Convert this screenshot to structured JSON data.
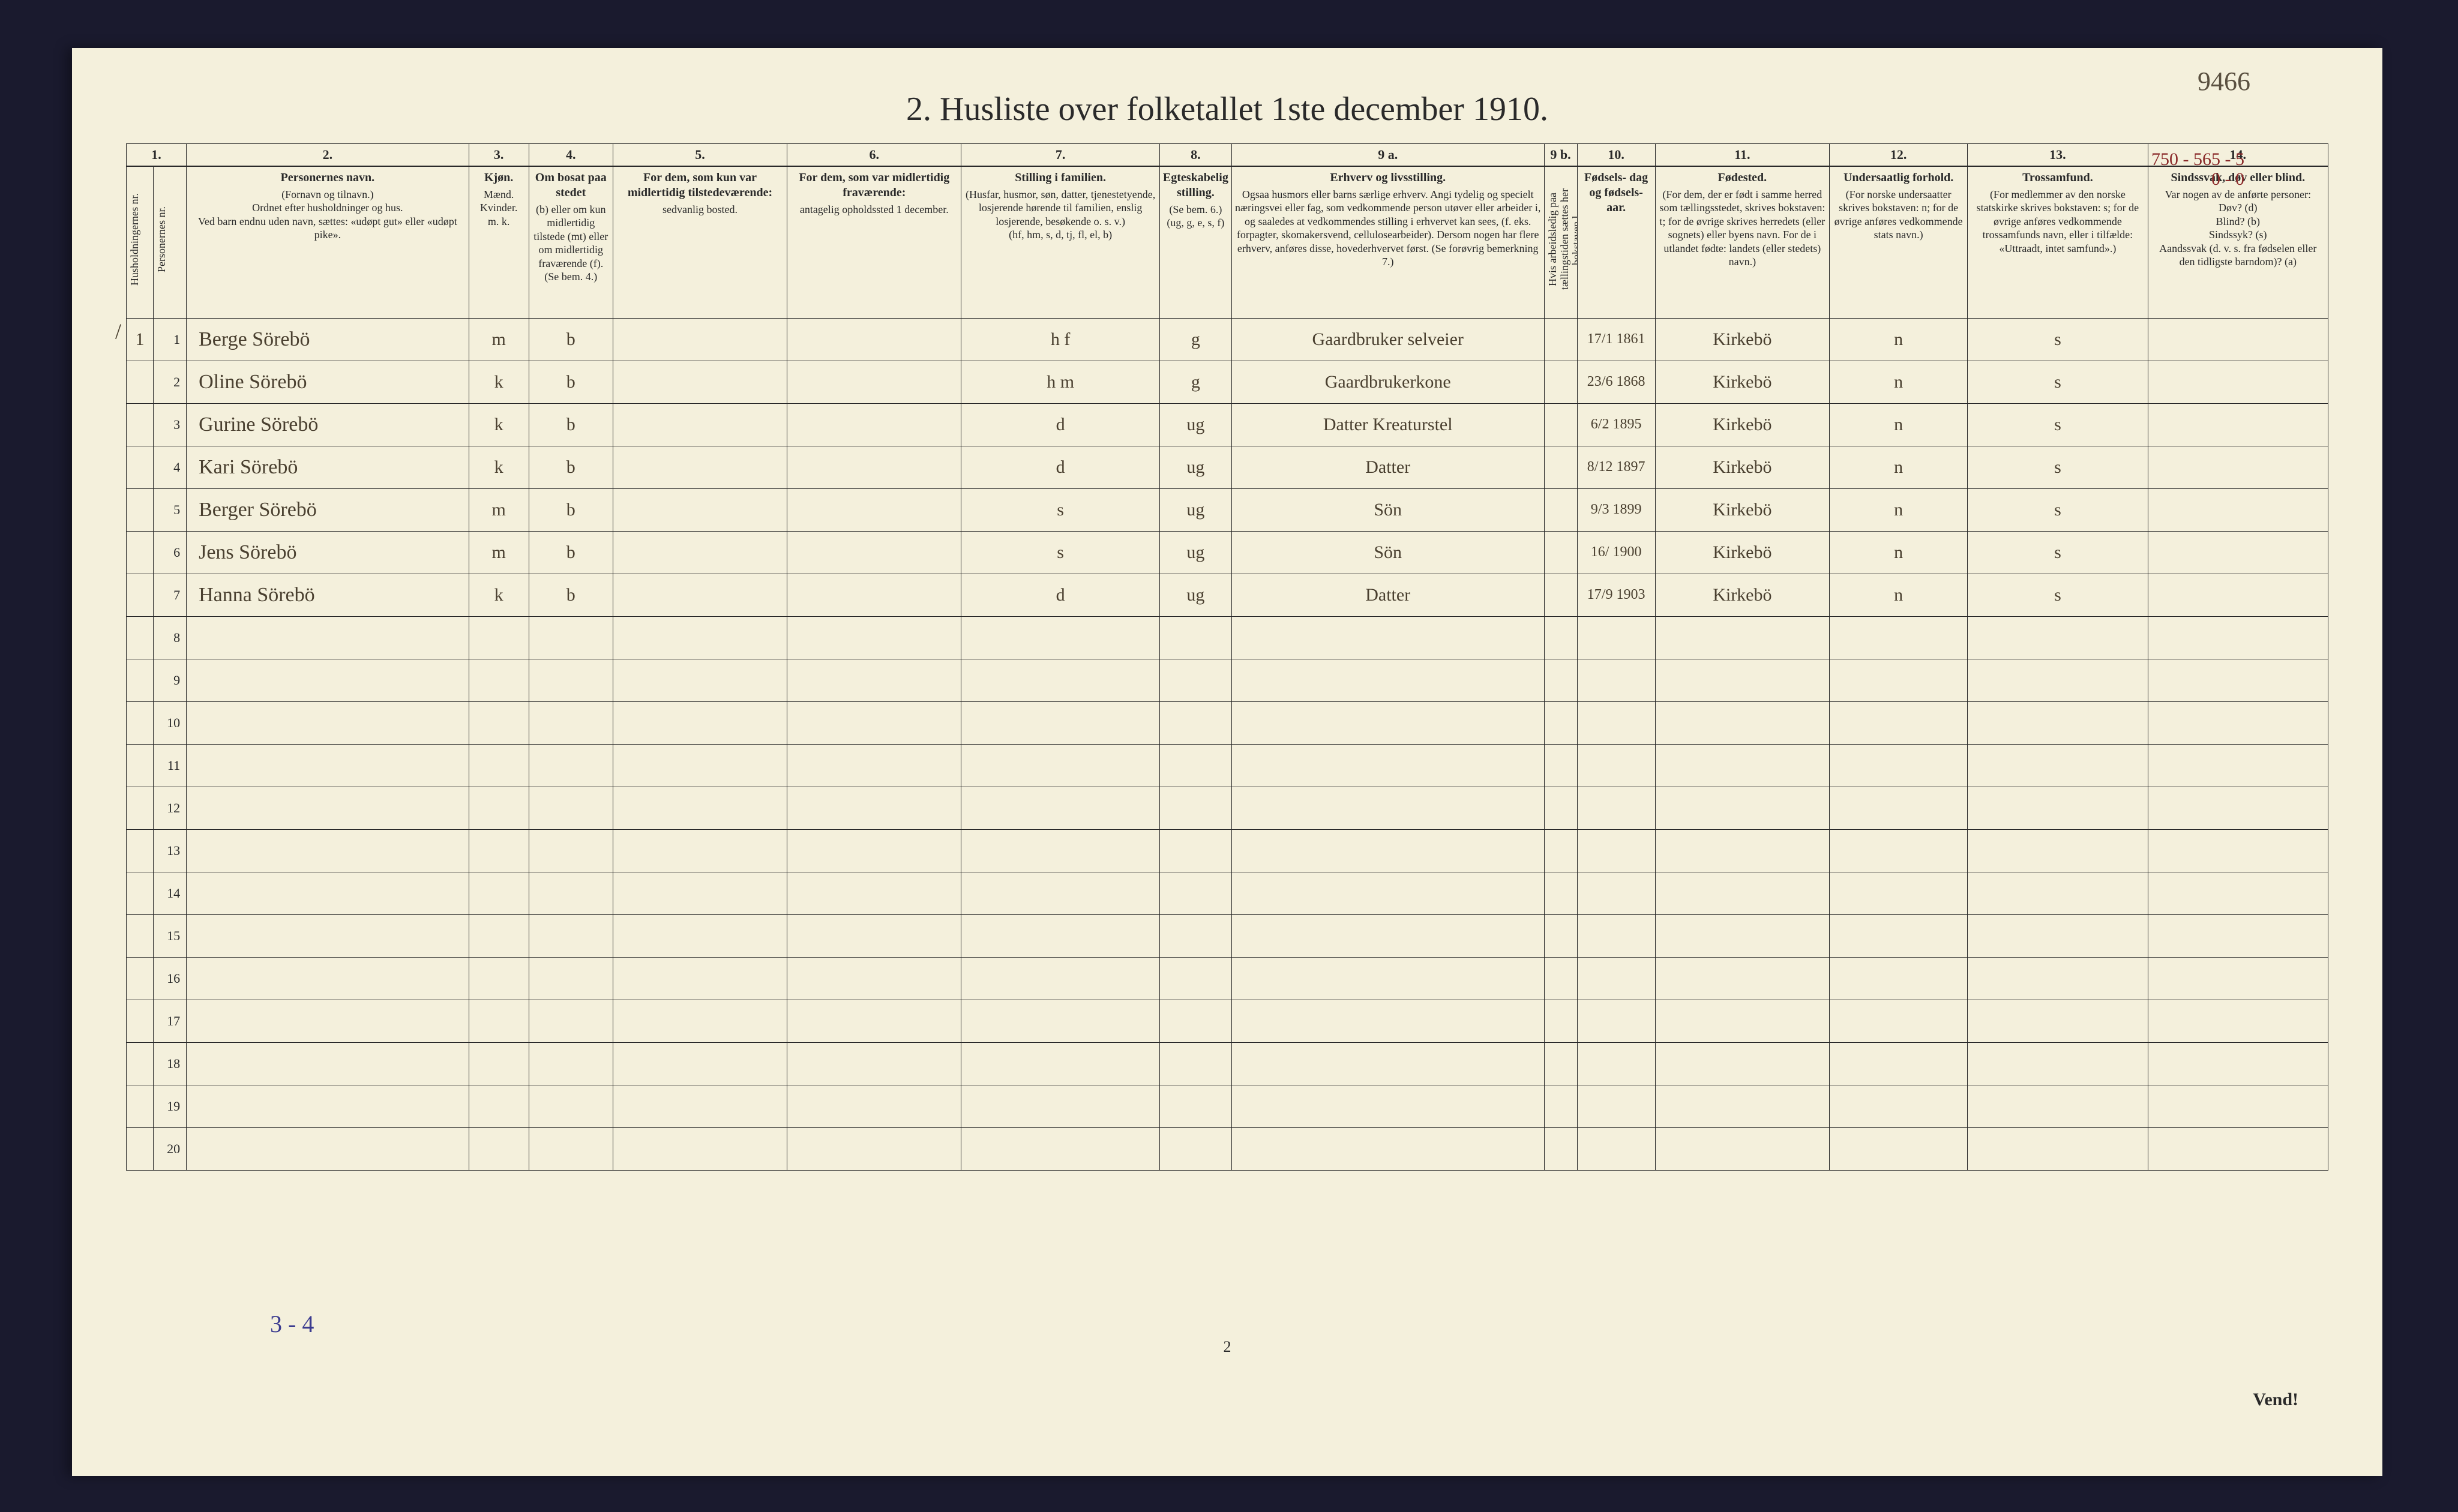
{
  "topright_hw": "9466",
  "title": "2.  Husliste over folketallet 1ste december 1910.",
  "colnums": [
    "1.",
    "",
    "2.",
    "3.",
    "4.",
    "5.",
    "6.",
    "7.",
    "8.",
    "9 a.",
    "9 b.",
    "10.",
    "11.",
    "12.",
    "13.",
    "14."
  ],
  "headers": {
    "c1": "Husholdningernes nr.",
    "c1b": "Personernes nr.",
    "c2_t": "Personernes navn.",
    "c2_s": "(Fornavn og tilnavn.)\nOrdnet efter husholdninger og hus.\nVed barn endnu uden navn, sættes: «udøpt gut» eller «udøpt pike».",
    "c3_t": "Kjøn.",
    "c3_s": "Mænd.  Kvinder.\nm.  k.",
    "c4_t": "Om bosat paa stedet",
    "c4_s": "(b) eller om kun midlertidig tilstede (mt) eller om midlertidig fraværende (f). (Se bem. 4.)",
    "c5_t": "For dem, som kun var midlertidig tilstedeværende:",
    "c5_s": "sedvanlig bosted.",
    "c6_t": "For dem, som var midlertidig fraværende:",
    "c6_s": "antagelig opholdssted 1 december.",
    "c7_t": "Stilling i familien.",
    "c7_s": "(Husfar, husmor, søn, datter, tjenestetyende, losjerende hørende til familien, enslig losjerende, besøkende o. s. v.)\n(hf, hm, s, d, tj, fl, el, b)",
    "c8_t": "Egteskabelig stilling.",
    "c8_s": "(Se bem. 6.)\n(ug, g, e, s, f)",
    "c9a_t": "Erhverv og livsstilling.",
    "c9a_s": "Ogsaa husmors eller barns særlige erhverv. Angi tydelig og specielt næringsvei eller fag, som vedkommende person utøver eller arbeider i, og saaledes at vedkommendes stilling i erhvervet kan sees, (f. eks. forpagter, skomakersvend, cellulosearbeider). Dersom nogen har flere erhverv, anføres disse, hovederhvervet først. (Se forøvrig bemerkning 7.)",
    "c9b": "Hvis arbeidsledig paa tællingstiden sættes her bokstaven l.",
    "c10_t": "Fødsels- dag og fødsels- aar.",
    "c11_t": "Fødested.",
    "c11_s": "(For dem, der er født i samme herred som tællingsstedet, skrives bokstaven: t; for de øvrige skrives herredets (eller sognets) eller byens navn. For de i utlandet fødte: landets (eller stedets) navn.)",
    "c12_t": "Undersaatlig forhold.",
    "c12_s": "(For norske undersaatter skrives bokstaven: n; for de øvrige anføres vedkommende stats navn.)",
    "c13_t": "Trossamfund.",
    "c13_s": "(For medlemmer av den norske statskirke skrives bokstaven: s; for de øvrige anføres vedkommende trossamfunds navn, eller i tilfælde: «Uttraadt, intet samfund».)",
    "c14_t": "Sindssvak, døv eller blind.",
    "c14_s": "Var nogen av de anførte personer:\nDøv? (d)\nBlind? (b)\nSindssyk? (s)\nAandssvak (d. v. s. fra fødselen eller den tidligste barndom)? (a)"
  },
  "annot_top": "750 - 565 - 5\n0 - 0",
  "rows": [
    {
      "hh": "1",
      "n": "1",
      "name": "Berge   Sörebö",
      "mk": "m",
      "b": "b",
      "fam": "h f",
      "eg": "g",
      "erhv": "Gaardbruker selveier",
      "dob": "17/1 1861",
      "fsted": "Kirkebö",
      "us": "n",
      "tro": "s"
    },
    {
      "hh": "",
      "n": "2",
      "name": "Oline   Sörebö",
      "mk": "k",
      "b": "b",
      "fam": "h m",
      "eg": "g",
      "erhv": "Gaardbrukerkone",
      "dob": "23/6 1868",
      "fsted": "Kirkebö",
      "us": "n",
      "tro": "s"
    },
    {
      "hh": "",
      "n": "3",
      "name": "Gurine   Sörebö",
      "mk": "k",
      "b": "b",
      "fam": "d",
      "eg": "ug",
      "erhv": "Datter Kreaturstel",
      "dob": "6/2 1895",
      "fsted": "Kirkebö",
      "us": "n",
      "tro": "s"
    },
    {
      "hh": "",
      "n": "4",
      "name": "Kari     Sörebö",
      "mk": "k",
      "b": "b",
      "fam": "d",
      "eg": "ug",
      "erhv": "Datter",
      "dob": "8/12 1897",
      "fsted": "Kirkebö",
      "us": "n",
      "tro": "s"
    },
    {
      "hh": "",
      "n": "5",
      "name": "Berger   Sörebö",
      "mk": "m",
      "b": "b",
      "fam": "s",
      "eg": "ug",
      "erhv": "Sön",
      "dob": "9/3 1899",
      "fsted": "Kirkebö",
      "us": "n",
      "tro": "s"
    },
    {
      "hh": "",
      "n": "6",
      "name": "Jens     Sörebö",
      "mk": "m",
      "b": "b",
      "fam": "s",
      "eg": "ug",
      "erhv": "Sön",
      "dob": "16/ 1900",
      "fsted": "Kirkebö",
      "us": "n",
      "tro": "s"
    },
    {
      "hh": "",
      "n": "7",
      "name": "Hanna   Sörebö",
      "mk": "k",
      "b": "b",
      "fam": "d",
      "eg": "ug",
      "erhv": "Datter",
      "dob": "17/9 1903",
      "fsted": "Kirkebö",
      "us": "n",
      "tro": "s"
    }
  ],
  "empty_rows": [
    "8",
    "9",
    "10",
    "11",
    "12",
    "13",
    "14",
    "15",
    "16",
    "17",
    "18",
    "19",
    "20"
  ],
  "footer_note": "3 - 4",
  "page_num": "2",
  "vend": "Vend!",
  "colwidths": {
    "c1": "45",
    "c1b": "55",
    "c2": "470",
    "c3": "100",
    "c4": "140",
    "c5": "290",
    "c6": "290",
    "c7": "330",
    "c8": "120",
    "c9a": "520",
    "c9b": "55",
    "c10": "130",
    "c11": "290",
    "c12": "230",
    "c13": "300",
    "c14": "300"
  },
  "colors": {
    "paper": "#f4f0dc",
    "ink": "#2a2a2a",
    "handwriting": "#4a4030",
    "blue_note": "#3b3b8f",
    "red_annot": "#8a2a2a"
  }
}
